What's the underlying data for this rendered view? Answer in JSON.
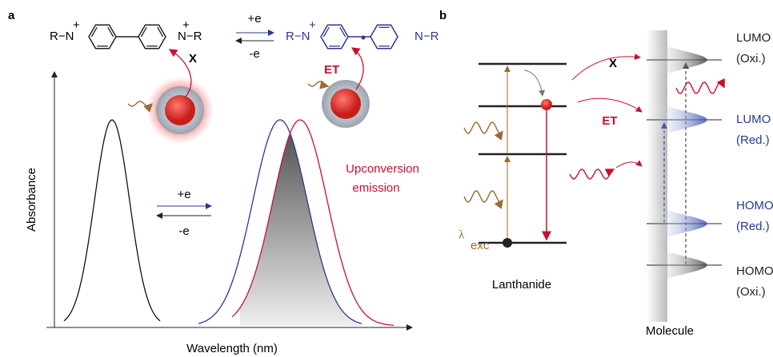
{
  "panel_a": {
    "label": "a",
    "reaction": {
      "forward": "+e",
      "backward": "-e"
    },
    "oxidized": {
      "left": "R−N",
      "right": "N−R",
      "charge": "+"
    },
    "reduced": {
      "left": "R−N",
      "right": "N−R",
      "charge": "+"
    },
    "blocked": "X",
    "transfer": "ET",
    "y_axis": "Absorbance",
    "x_axis": "Wavelength (nm)",
    "emission": [
      "Upconversion",
      "emission"
    ],
    "switch": {
      "forward": "+e",
      "backward": "-e"
    }
  },
  "panel_b": {
    "label": "b",
    "blocked": "X",
    "transfer": "ET",
    "excitation": {
      "symbol": "λ",
      "subscript": "exc"
    },
    "donor": "Lanthanide",
    "acceptor": "Molecule",
    "levels": [
      {
        "name": "LUMO",
        "state": "(Oxi.)"
      },
      {
        "name": "LUMO",
        "state": "(Red.)"
      },
      {
        "name": "HOMO",
        "state": "(Red.)"
      },
      {
        "name": "HOMO",
        "state": "(Oxi.)"
      }
    ]
  }
}
